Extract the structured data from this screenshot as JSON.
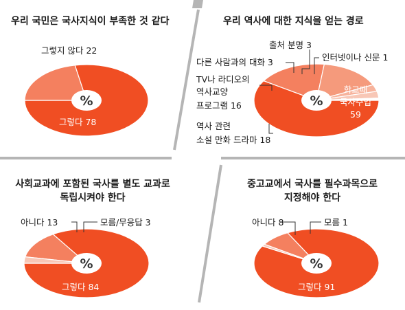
{
  "colors": {
    "primary": "#f04e23",
    "secondary": "#f4805f",
    "tertiary": "#f59a7c",
    "quaternary": "#f7b39c",
    "quinary": "#f8c7b6",
    "center": "#ffffff",
    "divider": "#b5b5b5"
  },
  "chart_data": [
    {
      "type": "pie",
      "title": "우리 국민은 국사지식이 부족한 것 같다",
      "center_label": "%",
      "slices": [
        {
          "label": "그렇다",
          "value": 78,
          "text": "그렇다 78"
        },
        {
          "label": "그렇지 않다",
          "value": 22,
          "text": "그렇지 않다 22"
        }
      ]
    },
    {
      "type": "pie",
      "title": "우리 역사에 대한 지식을 얻는 경로",
      "center_label": "%",
      "slices": [
        {
          "label": "학교때 국사수업",
          "value": 59,
          "lines": [
            "학교때",
            "국사수업",
            "59"
          ]
        },
        {
          "label": "역사 관련 소설 만화 드라마",
          "value": 18,
          "lines": [
            "역사 관련",
            "소설 만화 드라마 18"
          ]
        },
        {
          "label": "TV나 라디오의 역사교양 프로그램",
          "value": 16,
          "lines": [
            "TV나 라디오의",
            "역사교양",
            "프로그램 16"
          ]
        },
        {
          "label": "다른 사람과의 대화",
          "value": 3,
          "lines": [
            "다른 사람과의 대화 3"
          ]
        },
        {
          "label": "출처 분명",
          "value": 3,
          "lines": [
            "출처 분명 3"
          ]
        },
        {
          "label": "인터넷이나 신문",
          "value": 1,
          "lines": [
            "인터넷이나 신문 1"
          ]
        }
      ]
    },
    {
      "type": "pie",
      "title": "사회교과에 포함된 국사를 별도 교과로 독립시켜야 한다",
      "title_lines": [
        "사회교과에 포함된 국사를 별도 교과로",
        "독립시켜야 한다"
      ],
      "center_label": "%",
      "slices": [
        {
          "label": "그렇다",
          "value": 84,
          "text": "그렇다 84"
        },
        {
          "label": "아니다",
          "value": 13,
          "text": "아니다 13"
        },
        {
          "label": "모름/무응답",
          "value": 3,
          "text": "모름/무응답 3"
        }
      ]
    },
    {
      "type": "pie",
      "title": "중고교에서 국사를 필수과목으로 지정해야 한다",
      "title_lines": [
        "중고교에서 국사를 필수과목으로",
        "지정해야 한다"
      ],
      "center_label": "%",
      "slices": [
        {
          "label": "그렇다",
          "value": 91,
          "text": "그렇다 91"
        },
        {
          "label": "아니다",
          "value": 8,
          "text": "아니다 8"
        },
        {
          "label": "모름",
          "value": 1,
          "text": "모름 1"
        }
      ]
    }
  ]
}
